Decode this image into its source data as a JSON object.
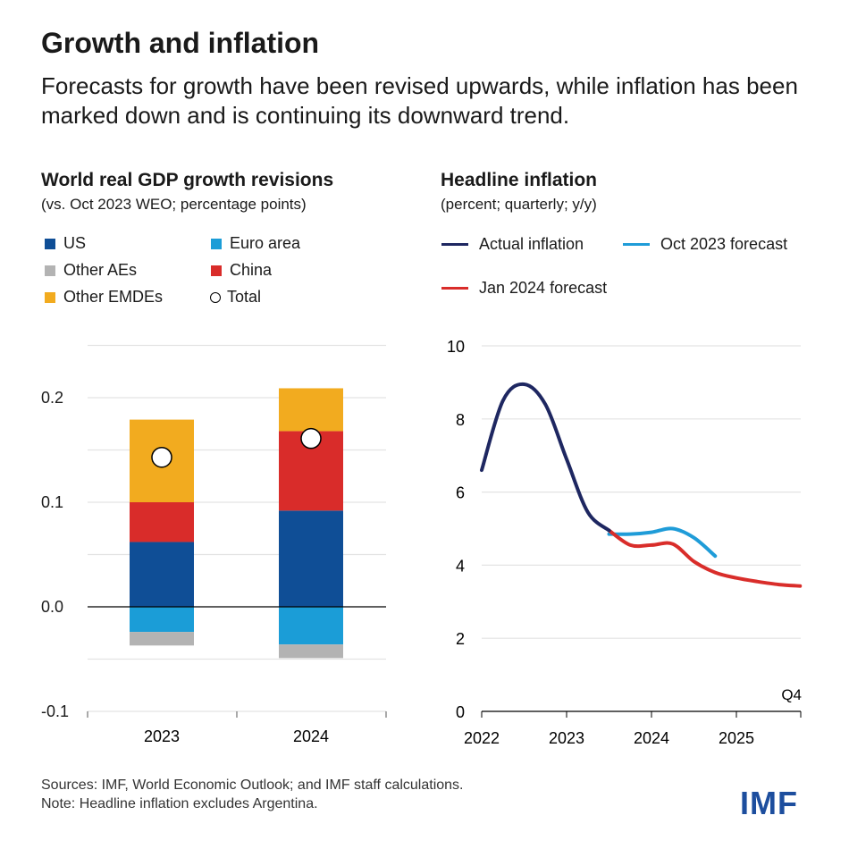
{
  "header": {
    "title": "Growth and inflation",
    "subtitle": "Forecasts for growth have been revised upwards, while inflation has been marked down and is continuing its downward trend."
  },
  "footer": {
    "sources": "Sources: IMF, World Economic Outlook; and IMF staff calculations.",
    "note": "Note: Headline inflation excludes Argentina.",
    "logo": "IMF"
  },
  "chart_data": [
    {
      "type": "bar",
      "stacked": true,
      "title": "World real GDP growth revisions",
      "subtitle": "(vs. Oct 2023 WEO; percentage points)",
      "categories": [
        "2023",
        "2024"
      ],
      "ylim": [
        -0.1,
        0.25
      ],
      "yticks": [
        "-0.1",
        "0.0",
        "0.1",
        "0.2"
      ],
      "ytick_values": [
        -0.1,
        0,
        0.1,
        0.2
      ],
      "grid": true,
      "legend_position": "top",
      "series": [
        {
          "name": "US",
          "color": "#0f4e96",
          "values": [
            0.062,
            0.092
          ]
        },
        {
          "name": "China",
          "color": "#d92c2a",
          "values": [
            0.038,
            0.076
          ]
        },
        {
          "name": "Other EMDEs",
          "color": "#f2ab1f",
          "values": [
            0.079,
            0.041
          ]
        },
        {
          "name": "Euro area",
          "color": "#1b9dd7",
          "values": [
            -0.024,
            -0.036
          ]
        },
        {
          "name": "Other AEs",
          "color": "#b3b3b3",
          "values": [
            -0.013,
            -0.013
          ]
        }
      ],
      "total": {
        "name": "Total",
        "values": [
          0.143,
          0.161
        ]
      },
      "legend_order": [
        "US",
        "Euro area",
        "Other AEs",
        "China",
        "Other EMDEs",
        "Total"
      ]
    },
    {
      "type": "line",
      "title": "Headline inflation",
      "subtitle": "(percent; quarterly; y/y)",
      "ylim": [
        0,
        10
      ],
      "yticks": [
        "0",
        "2",
        "4",
        "6",
        "8",
        "10"
      ],
      "xticks": [
        "2022",
        "2023",
        "2024",
        "2025"
      ],
      "x_end_label": "Q4",
      "grid": true,
      "legend_position": "top",
      "series": [
        {
          "name": "Actual inflation",
          "color": "#1e2761",
          "x": [
            "2022Q1",
            "2022Q2",
            "2022Q3",
            "2022Q4",
            "2023Q1",
            "2023Q2",
            "2023Q3"
          ],
          "values": [
            6.6,
            8.5,
            8.95,
            8.4,
            6.9,
            5.45,
            4.95
          ]
        },
        {
          "name": "Oct 2023 forecast",
          "color": "#1f9cd8",
          "x": [
            "2023Q3",
            "2023Q4",
            "2024Q1",
            "2024Q2",
            "2024Q3",
            "2024Q4"
          ],
          "values": [
            4.85,
            4.85,
            4.9,
            5.0,
            4.75,
            4.25
          ]
        },
        {
          "name": "Jan 2024 forecast",
          "color": "#d92d2a",
          "x": [
            "2023Q3",
            "2023Q4",
            "2024Q1",
            "2024Q2",
            "2024Q3",
            "2024Q4",
            "2025Q1",
            "2025Q2",
            "2025Q3",
            "2025Q4"
          ],
          "values": [
            4.95,
            4.55,
            4.55,
            4.58,
            4.1,
            3.8,
            3.65,
            3.55,
            3.47,
            3.43
          ]
        }
      ]
    }
  ]
}
